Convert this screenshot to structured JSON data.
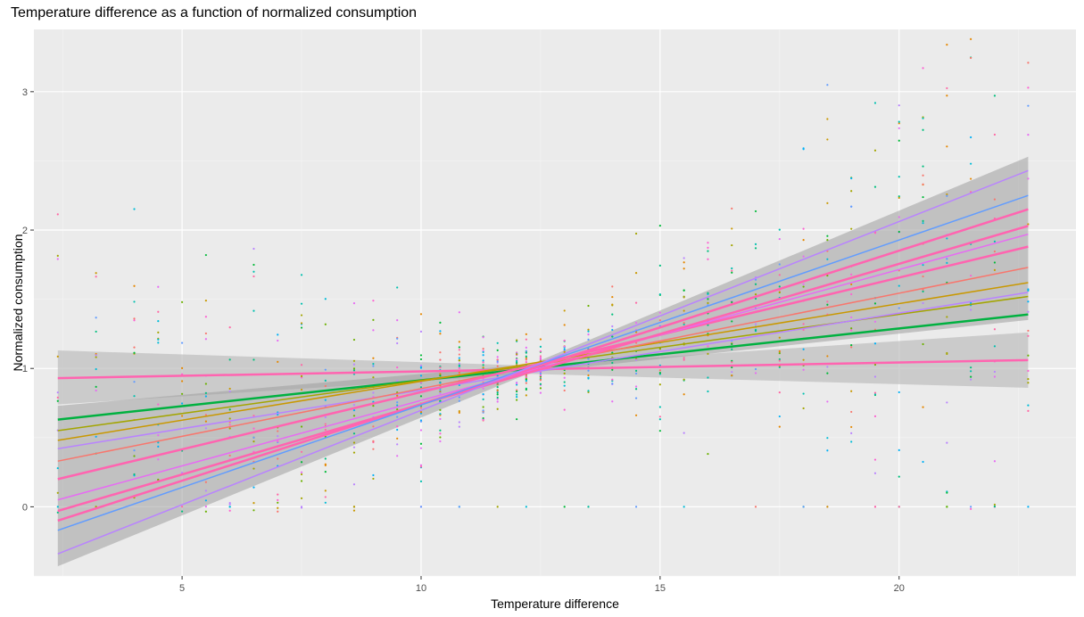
{
  "chart_data": {
    "type": "scatter",
    "title": "Temperature difference as a function of normalized consumption",
    "xlabel": "Temperature difference",
    "ylabel": "Normalized consumption",
    "xlim": [
      1.9,
      23.7
    ],
    "ylim": [
      -0.5,
      3.45
    ],
    "x_ticks": [
      5,
      10,
      15,
      20
    ],
    "y_ticks": [
      0,
      1,
      2,
      3
    ],
    "grid": true,
    "legend": "none",
    "palette": [
      "#F8766D",
      "#E58700",
      "#C99800",
      "#A3A500",
      "#6BB100",
      "#00BA38",
      "#00BF7D",
      "#00C0AF",
      "#00BCD8",
      "#00B0F6",
      "#619CFF",
      "#B983FF",
      "#E76BF3",
      "#FD61D1",
      "#FF67A4"
    ],
    "x_positions": [
      2.4,
      3.2,
      4.0,
      4.5,
      5.0,
      5.5,
      6.0,
      6.5,
      7.0,
      7.5,
      8.0,
      8.6,
      9.0,
      9.5,
      10.0,
      10.4,
      10.8,
      11.3,
      11.6,
      12.0,
      12.2,
      12.5,
      13.0,
      13.5,
      14.0,
      14.5,
      15.0,
      15.5,
      16.0,
      16.5,
      17.0,
      17.5,
      18.0,
      18.5,
      19.0,
      19.5,
      20.0,
      20.5,
      21.0,
      21.5,
      22.0,
      22.7
    ],
    "fit_lines": [
      {
        "x": [
          2.4,
          22.7
        ],
        "y": [
          0.93,
          1.06
        ],
        "color": "#FF64B0",
        "width": 2.5
      },
      {
        "x": [
          2.4,
          22.7
        ],
        "y": [
          0.63,
          1.39
        ],
        "color": "#00B140",
        "width": 2.5
      },
      {
        "x": [
          2.4,
          22.7
        ],
        "y": [
          0.55,
          1.52
        ],
        "color": "#A3A500",
        "width": 1.5
      },
      {
        "x": [
          2.4,
          22.7
        ],
        "y": [
          0.48,
          1.62
        ],
        "color": "#C99800",
        "width": 1.5
      },
      {
        "x": [
          2.4,
          22.7
        ],
        "y": [
          0.42,
          1.55
        ],
        "color": "#B983FF",
        "width": 1.5
      },
      {
        "x": [
          2.4,
          22.7
        ],
        "y": [
          0.33,
          1.73
        ],
        "color": "#F8766D",
        "width": 1.5
      },
      {
        "x": [
          2.4,
          22.7
        ],
        "y": [
          0.2,
          1.88
        ],
        "color": "#FF64B0",
        "width": 2.5
      },
      {
        "x": [
          2.4,
          22.7
        ],
        "y": [
          0.05,
          1.97
        ],
        "color": "#E76BF3",
        "width": 1.5
      },
      {
        "x": [
          2.4,
          22.7
        ],
        "y": [
          -0.03,
          2.03
        ],
        "color": "#FF64B0",
        "width": 2.5
      },
      {
        "x": [
          2.4,
          22.7
        ],
        "y": [
          -0.1,
          2.15
        ],
        "color": "#FF64B0",
        "width": 2.5
      },
      {
        "x": [
          2.4,
          22.7
        ],
        "y": [
          -0.17,
          2.25
        ],
        "color": "#619CFF",
        "width": 1.5
      },
      {
        "x": [
          2.4,
          22.7
        ],
        "y": [
          -0.34,
          2.43
        ],
        "color": "#B983FF",
        "width": 1.5
      }
    ],
    "bands": [
      {
        "x": [
          2.4,
          12.3,
          22.7
        ],
        "lower": [
          0.74,
          0.96,
          0.86
        ],
        "upper": [
          1.13,
          1.02,
          1.26
        ]
      },
      {
        "x": [
          2.4,
          12.3,
          22.7
        ],
        "lower": [
          -0.43,
          0.97,
          1.35
        ],
        "upper": [
          0.73,
          1.03,
          2.53
        ]
      }
    ]
  }
}
